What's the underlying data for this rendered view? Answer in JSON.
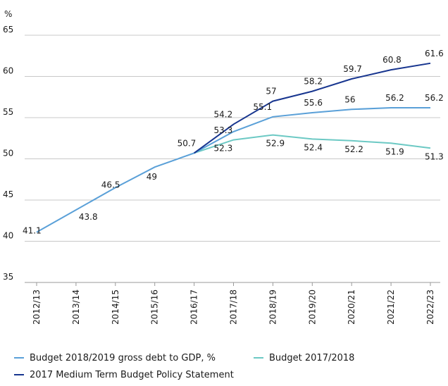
{
  "chart_data": {
    "type": "line",
    "ylabel": "%",
    "ylim": [
      35,
      65
    ],
    "yticks": [
      35,
      40,
      45,
      50,
      55,
      60,
      65
    ],
    "grid": "horizontal",
    "legend_position": "bottom",
    "categories": [
      "2012/13",
      "2013/14",
      "2014/15",
      "2015/16",
      "2016/17",
      "2017/18",
      "2018/19",
      "2019/20",
      "2020/21",
      "2021/22",
      "2022/23"
    ],
    "series": [
      {
        "name": "Budget 2018/2019 gross debt to GDP, %",
        "color": "#5aa0d8",
        "values": [
          41.1,
          43.8,
          46.5,
          49,
          50.7,
          53.3,
          55.1,
          55.6,
          56,
          56.2,
          56.2
        ]
      },
      {
        "name": "Budget 2017/2018",
        "color": "#6cc9c4",
        "values": [
          null,
          null,
          null,
          null,
          null,
          52.3,
          52.9,
          52.4,
          52.2,
          51.9,
          51.3
        ]
      },
      {
        "name": "2017 Medium Term Budget Policy Statement",
        "color": "#17358f",
        "values": [
          null,
          null,
          null,
          null,
          null,
          54.2,
          57,
          58.2,
          59.7,
          60.8,
          61.6
        ]
      }
    ]
  }
}
